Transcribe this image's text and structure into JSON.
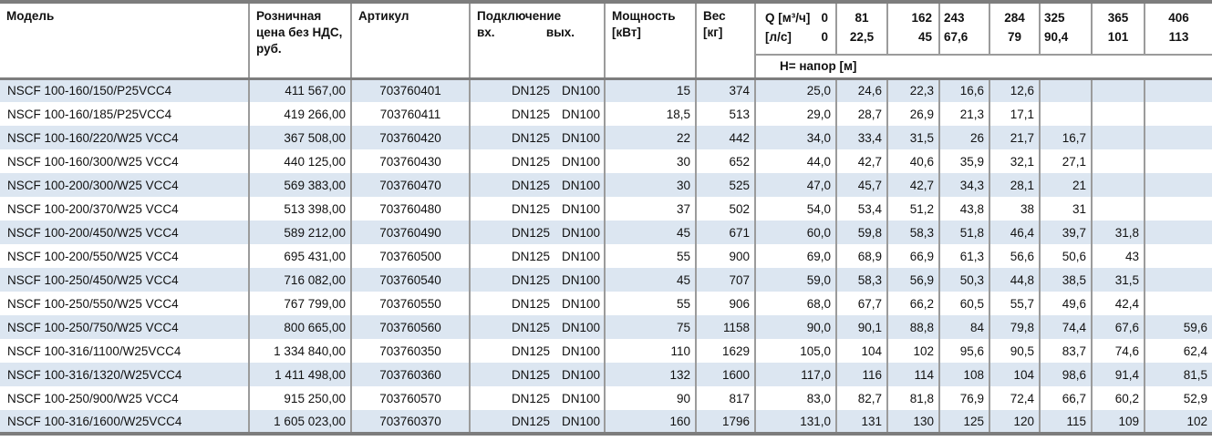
{
  "table": {
    "headers": {
      "model": "Модель",
      "price": "Розничная цена без НДС, руб.",
      "article": "Артикул",
      "connection": "Подключение",
      "connection_in": "вх.",
      "connection_out": "вых.",
      "power": "Мощность",
      "power_unit": "[кВт]",
      "weight": "Вес",
      "weight_unit": "[кг]",
      "q_flow_label": "Q [м³/ч]",
      "q_flow_zero": "0",
      "q_ls_label": "[л/с]",
      "q_ls_zero": "0",
      "head_row_label": "H= напор [м]",
      "q_columns": [
        {
          "m3h": "81",
          "ls": "22,5"
        },
        {
          "m3h": "162",
          "ls": "45"
        },
        {
          "m3h": "243",
          "ls": "67,6"
        },
        {
          "m3h": "284",
          "ls": "79"
        },
        {
          "m3h": "325",
          "ls": "90,4"
        },
        {
          "m3h": "365",
          "ls": "101"
        },
        {
          "m3h": "406",
          "ls": "113"
        }
      ]
    },
    "rows": [
      {
        "model": "NSCF 100-160/150/P25VCC4",
        "price": "411 567,00",
        "article": "703760401",
        "dn_in": "DN125",
        "dn_out": "DN100",
        "power": "15",
        "weight": "374",
        "h": [
          "25,0",
          "24,6",
          "22,3",
          "16,6",
          "12,6",
          "",
          "",
          ""
        ]
      },
      {
        "model": "NSCF 100-160/185/P25VCC4",
        "price": "419 266,00",
        "article": "703760411",
        "dn_in": "DN125",
        "dn_out": "DN100",
        "power": "18,5",
        "weight": "513",
        "h": [
          "29,0",
          "28,7",
          "26,9",
          "21,3",
          "17,1",
          "",
          "",
          ""
        ]
      },
      {
        "model": "NSCF 100-160/220/W25 VCC4",
        "price": "367 508,00",
        "article": "703760420",
        "dn_in": "DN125",
        "dn_out": "DN100",
        "power": "22",
        "weight": "442",
        "h": [
          "34,0",
          "33,4",
          "31,5",
          "26",
          "21,7",
          "16,7",
          "",
          ""
        ]
      },
      {
        "model": "NSCF 100-160/300/W25 VCC4",
        "price": "440 125,00",
        "article": "703760430",
        "dn_in": "DN125",
        "dn_out": "DN100",
        "power": "30",
        "weight": "652",
        "h": [
          "44,0",
          "42,7",
          "40,6",
          "35,9",
          "32,1",
          "27,1",
          "",
          ""
        ]
      },
      {
        "model": "NSCF 100-200/300/W25 VCC4",
        "price": "569 383,00",
        "article": "703760470",
        "dn_in": "DN125",
        "dn_out": "DN100",
        "power": "30",
        "weight": "525",
        "h": [
          "47,0",
          "45,7",
          "42,7",
          "34,3",
          "28,1",
          "21",
          "",
          ""
        ]
      },
      {
        "model": "NSCF 100-200/370/W25 VCC4",
        "price": "513 398,00",
        "article": "703760480",
        "dn_in": "DN125",
        "dn_out": "DN100",
        "power": "37",
        "weight": "502",
        "h": [
          "54,0",
          "53,4",
          "51,2",
          "43,8",
          "38",
          "31",
          "",
          ""
        ]
      },
      {
        "model": "NSCF 100-200/450/W25 VCC4",
        "price": "589 212,00",
        "article": "703760490",
        "dn_in": "DN125",
        "dn_out": "DN100",
        "power": "45",
        "weight": "671",
        "h": [
          "60,0",
          "59,8",
          "58,3",
          "51,8",
          "46,4",
          "39,7",
          "31,8",
          ""
        ]
      },
      {
        "model": "NSCF 100-200/550/W25 VCC4",
        "price": "695 431,00",
        "article": "703760500",
        "dn_in": "DN125",
        "dn_out": "DN100",
        "power": "55",
        "weight": "900",
        "h": [
          "69,0",
          "68,9",
          "66,9",
          "61,3",
          "56,6",
          "50,6",
          "43",
          ""
        ]
      },
      {
        "model": "NSCF 100-250/450/W25 VCC4",
        "price": "716 082,00",
        "article": "703760540",
        "dn_in": "DN125",
        "dn_out": "DN100",
        "power": "45",
        "weight": "707",
        "h": [
          "59,0",
          "58,3",
          "56,9",
          "50,3",
          "44,8",
          "38,5",
          "31,5",
          ""
        ]
      },
      {
        "model": "NSCF 100-250/550/W25 VCC4",
        "price": "767 799,00",
        "article": "703760550",
        "dn_in": "DN125",
        "dn_out": "DN100",
        "power": "55",
        "weight": "906",
        "h": [
          "68,0",
          "67,7",
          "66,2",
          "60,5",
          "55,7",
          "49,6",
          "42,4",
          ""
        ]
      },
      {
        "model": "NSCF 100-250/750/W25 VCC4",
        "price": "800 665,00",
        "article": "703760560",
        "dn_in": "DN125",
        "dn_out": "DN100",
        "power": "75",
        "weight": "1158",
        "h": [
          "90,0",
          "90,1",
          "88,8",
          "84",
          "79,8",
          "74,4",
          "67,6",
          "59,6"
        ]
      },
      {
        "model": "NSCF 100-316/1100/W25VCC4",
        "price": "1 334 840,00",
        "article": "703760350",
        "dn_in": "DN125",
        "dn_out": "DN100",
        "power": "110",
        "weight": "1629",
        "h": [
          "105,0",
          "104",
          "102",
          "95,6",
          "90,5",
          "83,7",
          "74,6",
          "62,4"
        ]
      },
      {
        "model": "NSCF 100-316/1320/W25VCC4",
        "price": "1 411 498,00",
        "article": "703760360",
        "dn_in": "DN125",
        "dn_out": "DN100",
        "power": "132",
        "weight": "1600",
        "h": [
          "117,0",
          "116",
          "114",
          "108",
          "104",
          "98,6",
          "91,4",
          "81,5"
        ]
      },
      {
        "model": "NSCF 100-250/900/W25 VCC4",
        "price": "915 250,00",
        "article": "703760570",
        "dn_in": "DN125",
        "dn_out": "DN100",
        "power": "90",
        "weight": "817",
        "h": [
          "83,0",
          "82,7",
          "81,8",
          "76,9",
          "72,4",
          "66,7",
          "60,2",
          "52,9"
        ]
      },
      {
        "model": "NSCF 100-316/1600/W25VCC4",
        "price": "1 605 023,00",
        "article": "703760370",
        "dn_in": "DN125",
        "dn_out": "DN100",
        "power": "160",
        "weight": "1796",
        "h": [
          "131,0",
          "131",
          "130",
          "125",
          "120",
          "115",
          "109",
          "102"
        ]
      }
    ]
  },
  "colors": {
    "row_alt_blue": "#dce6f1",
    "cell_border": "#9b9b9b",
    "thick_border": "#7d7d7d",
    "text": "#111111"
  }
}
